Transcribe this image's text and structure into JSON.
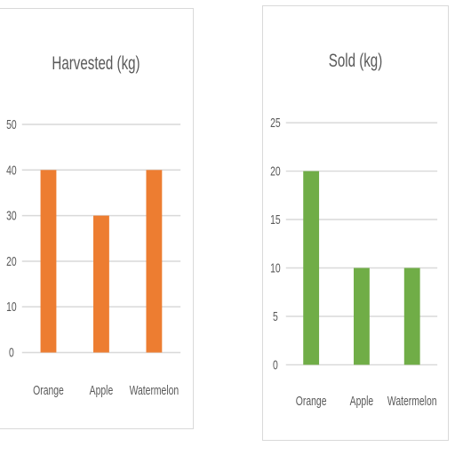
{
  "chart_data": [
    {
      "type": "bar",
      "title": "Harvested (kg)",
      "categories": [
        "Orange",
        "Apple",
        "Watermelon"
      ],
      "values": [
        40,
        30,
        40
      ],
      "ylim": [
        0,
        50
      ],
      "yticks": [
        "0",
        "10",
        "20",
        "30",
        "40",
        "50"
      ],
      "color": "#ED7D31",
      "grid": true,
      "xlabel": "",
      "ylabel": ""
    },
    {
      "type": "bar",
      "title": "Sold (kg)",
      "categories": [
        "Orange",
        "Apple",
        "Watermelon"
      ],
      "values": [
        20,
        10,
        10
      ],
      "ylim": [
        0,
        25
      ],
      "yticks": [
        "0",
        "5",
        "10",
        "15",
        "20",
        "25"
      ],
      "color": "#70AD47",
      "grid": true,
      "xlabel": "",
      "ylabel": ""
    }
  ]
}
